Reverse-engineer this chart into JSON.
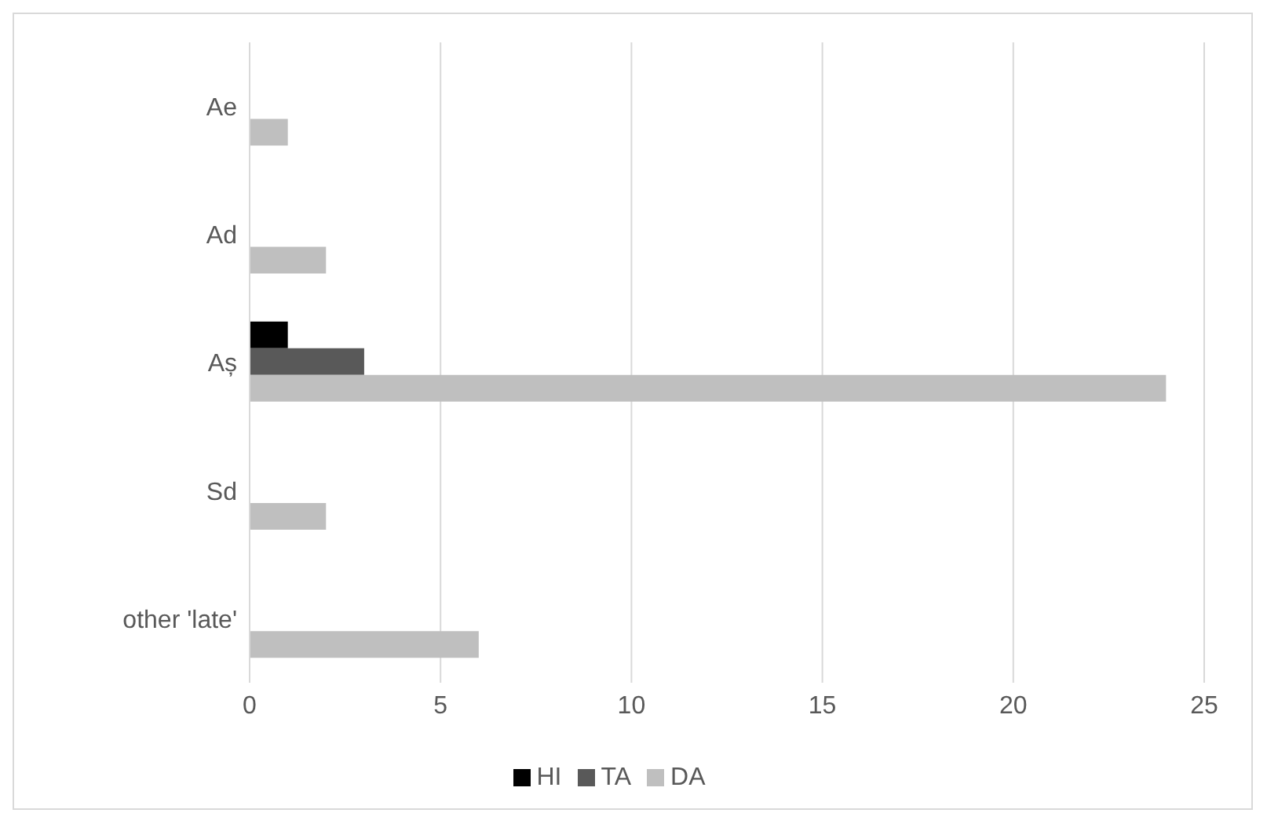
{
  "chart_data": {
    "type": "bar",
    "orientation": "horizontal",
    "categories": [
      "Ae",
      "Ad",
      "Aș",
      "Sd",
      "other 'late'"
    ],
    "series": [
      {
        "name": "HI",
        "color": "#000000",
        "values": [
          null,
          null,
          1,
          null,
          null
        ]
      },
      {
        "name": "TA",
        "color": "#595959",
        "values": [
          null,
          null,
          3,
          null,
          null
        ]
      },
      {
        "name": "DA",
        "color": "#bfbfbf",
        "values": [
          1,
          2,
          24,
          2,
          6
        ]
      }
    ],
    "xlim": [
      0,
      25
    ],
    "xticks": [
      0,
      5,
      10,
      15,
      20,
      25
    ],
    "grid": "x",
    "legend": "bottom"
  }
}
